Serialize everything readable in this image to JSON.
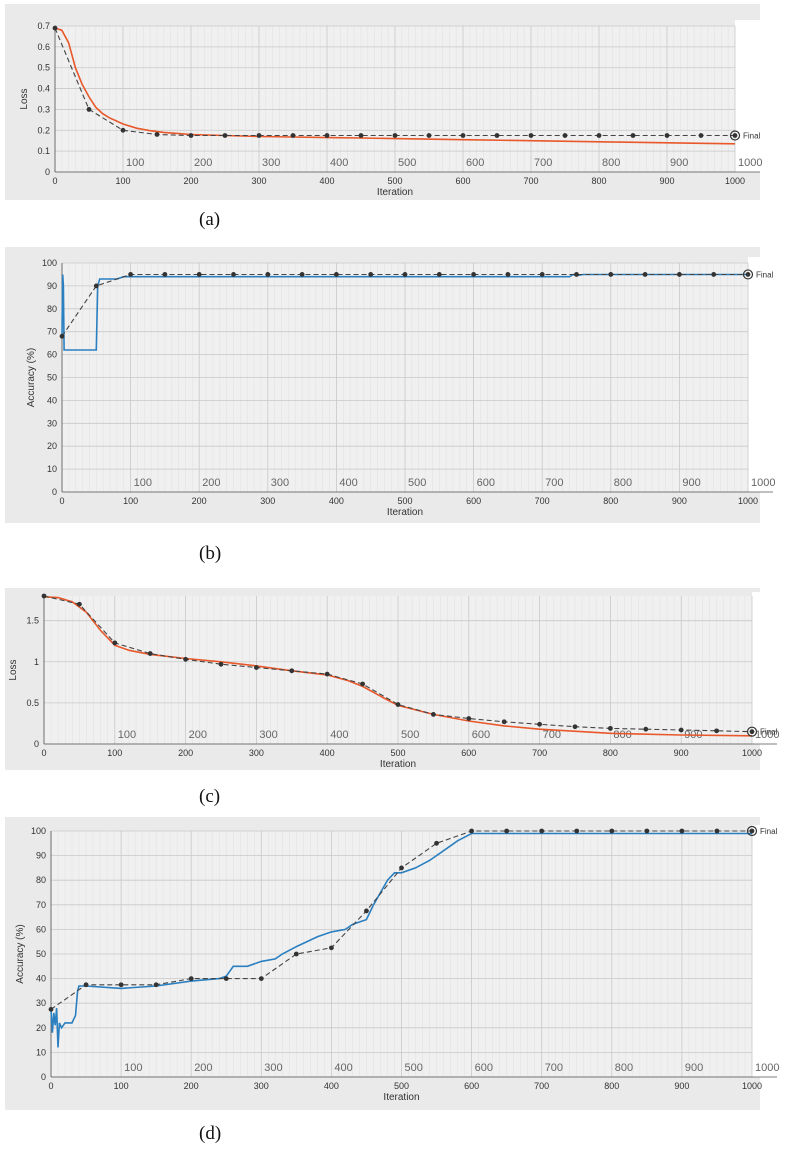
{
  "figure": {
    "panels": [
      {
        "caption": "(a)"
      },
      {
        "caption": "(b)"
      },
      {
        "caption": "(c)"
      },
      {
        "caption": "(d)"
      }
    ]
  },
  "colors": {
    "panel_bg": "#eaeaea",
    "plot_bg": "#f0f0f0",
    "grid_major": "#c8c8c8",
    "grid_minor": "#e3e3e3",
    "loss_line": "#e8582a",
    "accuracy_line": "#2a7fc1",
    "marker_line": "#444444",
    "marker": "#333333"
  },
  "chart_data": [
    {
      "type": "line",
      "panel": "(a)",
      "xlabel": "Iteration",
      "ylabel": "Loss",
      "xlim": [
        0,
        1000
      ],
      "ylim": [
        0,
        0.7
      ],
      "xticks": [
        0,
        100,
        200,
        300,
        400,
        500,
        600,
        700,
        800,
        900,
        1000
      ],
      "yticks": [
        0,
        0.1,
        0.2,
        0.3,
        0.4,
        0.5,
        0.6,
        0.7
      ],
      "inner_labels": [
        "100",
        "200",
        "300",
        "400",
        "500",
        "600",
        "700",
        "800",
        "900",
        "1000"
      ],
      "final_label": "Final",
      "series": [
        {
          "kind": "solid",
          "x": [
            0,
            10,
            20,
            30,
            40,
            50,
            60,
            70,
            80,
            90,
            100,
            120,
            140,
            160,
            180,
            200,
            250,
            300,
            350,
            400,
            450,
            500,
            600,
            700,
            800,
            900,
            1000
          ],
          "y": [
            0.69,
            0.68,
            0.62,
            0.5,
            0.42,
            0.36,
            0.31,
            0.28,
            0.26,
            0.245,
            0.23,
            0.21,
            0.198,
            0.19,
            0.185,
            0.18,
            0.175,
            0.17,
            0.168,
            0.165,
            0.163,
            0.16,
            0.155,
            0.15,
            0.145,
            0.14,
            0.135
          ]
        },
        {
          "kind": "dashed",
          "x": [
            0,
            50,
            100,
            150,
            200,
            250,
            300,
            350,
            400,
            450,
            500,
            550,
            600,
            650,
            700,
            750,
            800,
            850,
            900,
            950,
            1000
          ],
          "y": [
            0.69,
            0.3,
            0.2,
            0.18,
            0.175,
            0.175,
            0.175,
            0.175,
            0.175,
            0.175,
            0.175,
            0.175,
            0.175,
            0.175,
            0.175,
            0.175,
            0.175,
            0.175,
            0.175,
            0.175,
            0.175
          ]
        }
      ]
    },
    {
      "type": "line",
      "panel": "(b)",
      "xlabel": "Iteration",
      "ylabel": "Accuracy (%)",
      "xlim": [
        0,
        1000
      ],
      "ylim": [
        0,
        100
      ],
      "xticks": [
        0,
        100,
        200,
        300,
        400,
        500,
        600,
        700,
        800,
        900,
        1000
      ],
      "yticks": [
        0,
        10,
        20,
        30,
        40,
        50,
        60,
        70,
        80,
        90,
        100
      ],
      "inner_labels": [
        "100",
        "200",
        "300",
        "400",
        "500",
        "600",
        "700",
        "800",
        "900",
        "1000"
      ],
      "final_label": "Final",
      "series": [
        {
          "kind": "solid",
          "x": [
            0,
            1,
            2,
            3,
            50,
            52,
            55,
            60,
            80,
            90,
            100,
            200,
            300,
            400,
            500,
            600,
            700,
            740,
            745,
            750,
            760,
            800,
            900,
            1000
          ],
          "y": [
            68,
            95,
            90,
            62,
            62,
            90,
            93,
            93,
            93,
            94,
            94,
            94,
            94,
            94,
            94,
            94,
            94,
            94,
            95,
            94.5,
            95,
            95,
            95,
            95
          ]
        },
        {
          "kind": "dashed",
          "x": [
            0,
            50,
            100,
            150,
            200,
            250,
            300,
            350,
            400,
            450,
            500,
            550,
            600,
            650,
            700,
            750,
            800,
            850,
            900,
            950,
            1000
          ],
          "y": [
            68,
            90,
            95,
            95,
            95,
            95,
            95,
            95,
            95,
            95,
            95,
            95,
            95,
            95,
            95,
            95,
            95,
            95,
            95,
            95,
            95
          ]
        }
      ]
    },
    {
      "type": "line",
      "panel": "(c)",
      "xlabel": "Iteration",
      "ylabel": "Loss",
      "xlim": [
        0,
        1000
      ],
      "ylim": [
        0,
        1.8
      ],
      "xticks": [
        0,
        100,
        200,
        300,
        400,
        500,
        600,
        700,
        800,
        900,
        1000
      ],
      "yticks": [
        0,
        0.5,
        1,
        1.5
      ],
      "inner_labels": [
        "100",
        "200",
        "300",
        "400",
        "500",
        "600",
        "700",
        "800",
        "900",
        "1000"
      ],
      "final_label": "Final",
      "series": [
        {
          "kind": "solid",
          "x": [
            0,
            20,
            40,
            60,
            80,
            100,
            120,
            150,
            200,
            250,
            300,
            350,
            400,
            430,
            450,
            480,
            500,
            550,
            600,
            650,
            700,
            800,
            900,
            1000
          ],
          "y": [
            1.79,
            1.78,
            1.73,
            1.6,
            1.38,
            1.2,
            1.14,
            1.09,
            1.04,
            1.0,
            0.95,
            0.89,
            0.84,
            0.77,
            0.7,
            0.56,
            0.47,
            0.36,
            0.28,
            0.22,
            0.18,
            0.13,
            0.11,
            0.1
          ]
        },
        {
          "kind": "dashed",
          "x": [
            0,
            50,
            100,
            150,
            200,
            250,
            300,
            350,
            400,
            450,
            500,
            550,
            600,
            650,
            700,
            750,
            800,
            850,
            900,
            950,
            1000
          ],
          "y": [
            1.8,
            1.7,
            1.23,
            1.1,
            1.03,
            0.97,
            0.93,
            0.89,
            0.85,
            0.73,
            0.48,
            0.36,
            0.31,
            0.27,
            0.24,
            0.21,
            0.19,
            0.18,
            0.17,
            0.16,
            0.15
          ]
        }
      ]
    },
    {
      "type": "line",
      "panel": "(d)",
      "xlabel": "Iteration",
      "ylabel": "Accuracy (%)",
      "xlim": [
        0,
        1000
      ],
      "ylim": [
        0,
        100
      ],
      "xticks": [
        0,
        100,
        200,
        300,
        400,
        500,
        600,
        700,
        800,
        900,
        1000
      ],
      "yticks": [
        0,
        10,
        20,
        30,
        40,
        50,
        60,
        70,
        80,
        90,
        100
      ],
      "inner_labels": [
        "100",
        "200",
        "300",
        "400",
        "500",
        "600",
        "700",
        "800",
        "900",
        "1000"
      ],
      "final_label": "Final",
      "series": [
        {
          "kind": "solid",
          "x": [
            0,
            2,
            4,
            6,
            8,
            10,
            12,
            15,
            20,
            30,
            35,
            38,
            40,
            50,
            100,
            150,
            200,
            240,
            250,
            260,
            280,
            300,
            320,
            330,
            350,
            380,
            400,
            420,
            430,
            440,
            450,
            460,
            470,
            480,
            490,
            500,
            520,
            540,
            560,
            580,
            600,
            700,
            800,
            900,
            1000
          ],
          "y": [
            28,
            18,
            26,
            21,
            28,
            12,
            22,
            20,
            22,
            22,
            25,
            35,
            37,
            37,
            36,
            37,
            39,
            40,
            41,
            45,
            45,
            47,
            48,
            50,
            53,
            57,
            59,
            60,
            62,
            63,
            64,
            70,
            75,
            80,
            83,
            83,
            85,
            88,
            92,
            96,
            99,
            99,
            99,
            99,
            99
          ]
        },
        {
          "kind": "dashed",
          "x": [
            0,
            50,
            100,
            150,
            200,
            250,
            300,
            350,
            400,
            450,
            500,
            550,
            600,
            650,
            700,
            750,
            800,
            850,
            900,
            950,
            1000
          ],
          "y": [
            27.5,
            37.5,
            37.5,
            37.5,
            40,
            40,
            40,
            50,
            52.5,
            67.5,
            85,
            95,
            100,
            100,
            100,
            100,
            100,
            100,
            100,
            100,
            100
          ]
        }
      ]
    }
  ]
}
